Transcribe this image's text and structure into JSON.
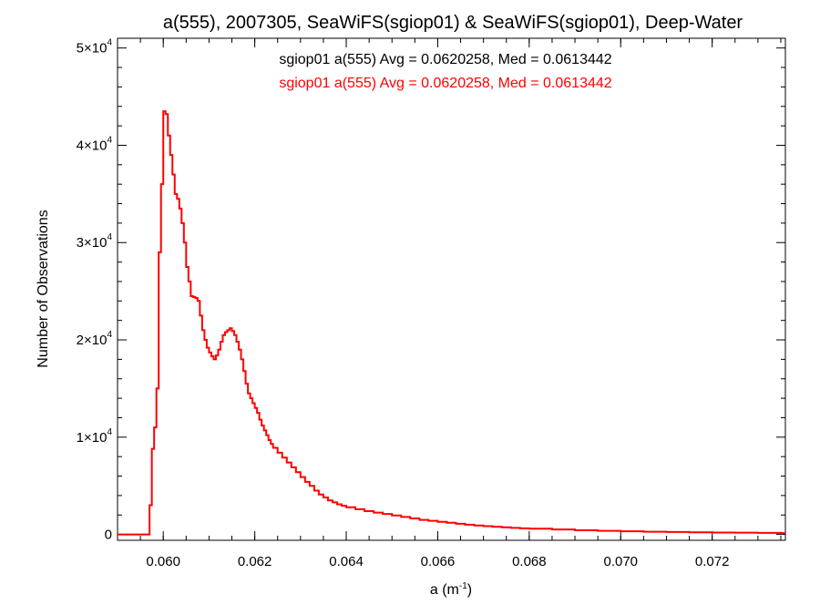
{
  "chart_data": {
    "type": "line",
    "style": "step-histogram",
    "title": "a(555), 2007305, SeaWiFS(sgiop01) & SeaWiFS(sgiop01), Deep-Water",
    "xlabel": {
      "base": "a (m",
      "sup": "-1",
      "tail": ")"
    },
    "ylabel": "Number of Observations",
    "xlim": [
      0.059,
      0.0736
    ],
    "ylim": [
      -600,
      51000
    ],
    "x_ticks": [
      {
        "value": 0.06,
        "label": "0.060"
      },
      {
        "value": 0.062,
        "label": "0.062"
      },
      {
        "value": 0.064,
        "label": "0.064"
      },
      {
        "value": 0.066,
        "label": "0.066"
      },
      {
        "value": 0.068,
        "label": "0.068"
      },
      {
        "value": 0.07,
        "label": "0.070"
      },
      {
        "value": 0.072,
        "label": "0.072"
      }
    ],
    "y_ticks": [
      {
        "value": 0,
        "mantissa": "0",
        "exp": ""
      },
      {
        "value": 10000,
        "mantissa": "1×10",
        "exp": "4"
      },
      {
        "value": 20000,
        "mantissa": "2×10",
        "exp": "4"
      },
      {
        "value": 30000,
        "mantissa": "3×10",
        "exp": "4"
      },
      {
        "value": 40000,
        "mantissa": "4×10",
        "exp": "4"
      },
      {
        "value": 50000,
        "mantissa": "5×10",
        "exp": "4"
      }
    ],
    "legend": [
      {
        "text": "sgiop01 a(555) Avg = 0.0620258, Med = 0.0613442",
        "color": "#000000"
      },
      {
        "text": "sgiop01 a(555) Avg = 0.0620258, Med = 0.0613442",
        "color": "#ff0000"
      }
    ],
    "legend_placement": "top-center",
    "series": [
      {
        "color": "#ff0000",
        "x": [
          0.059,
          0.05965,
          0.0597,
          0.05975,
          0.0598,
          0.05985,
          0.0599,
          0.05995,
          0.06,
          0.06005,
          0.0601,
          0.06015,
          0.0602,
          0.06025,
          0.0603,
          0.06035,
          0.0604,
          0.06045,
          0.0605,
          0.06055,
          0.0606,
          0.06065,
          0.0607,
          0.06075,
          0.0608,
          0.06085,
          0.0609,
          0.06095,
          0.061,
          0.06105,
          0.0611,
          0.06115,
          0.0612,
          0.06125,
          0.0613,
          0.06135,
          0.0614,
          0.06145,
          0.0615,
          0.06155,
          0.0616,
          0.06165,
          0.0617,
          0.06175,
          0.0618,
          0.06185,
          0.0619,
          0.06195,
          0.062,
          0.06205,
          0.0621,
          0.06215,
          0.0622,
          0.06225,
          0.0623,
          0.06235,
          0.0624,
          0.0625,
          0.0626,
          0.0627,
          0.0628,
          0.0629,
          0.063,
          0.0631,
          0.0632,
          0.0633,
          0.0634,
          0.0635,
          0.0636,
          0.0637,
          0.0638,
          0.0639,
          0.064,
          0.0642,
          0.0644,
          0.0646,
          0.0648,
          0.065,
          0.0652,
          0.0654,
          0.0656,
          0.0658,
          0.066,
          0.0662,
          0.0664,
          0.0666,
          0.0668,
          0.067,
          0.0672,
          0.0674,
          0.0676,
          0.0678,
          0.068,
          0.0685,
          0.069,
          0.0695,
          0.07,
          0.0705,
          0.071,
          0.0715,
          0.072,
          0.0725,
          0.073,
          0.0735
        ],
        "values": [
          0,
          0,
          3000,
          8800,
          11000,
          15000,
          29000,
          36000,
          43500,
          43200,
          41000,
          39000,
          37000,
          35000,
          34500,
          33500,
          32000,
          30000,
          27500,
          26000,
          24500,
          24400,
          24300,
          24000,
          22500,
          21000,
          20000,
          19200,
          18700,
          18300,
          18000,
          18400,
          19000,
          19800,
          20500,
          20800,
          21000,
          21200,
          20900,
          20500,
          19800,
          19000,
          18000,
          16800,
          15500,
          14500,
          14000,
          13500,
          13000,
          12500,
          11800,
          11200,
          10700,
          10200,
          9700,
          9300,
          8900,
          8400,
          7900,
          7400,
          6900,
          6400,
          5900,
          5400,
          5000,
          4500,
          4100,
          3800,
          3500,
          3300,
          3100,
          2950,
          2800,
          2600,
          2400,
          2250,
          2100,
          1950,
          1800,
          1650,
          1500,
          1400,
          1300,
          1200,
          1100,
          1000,
          920,
          850,
          790,
          730,
          680,
          630,
          590,
          510,
          430,
          370,
          320,
          280,
          250,
          220,
          200,
          180,
          160,
          140
        ]
      }
    ]
  }
}
